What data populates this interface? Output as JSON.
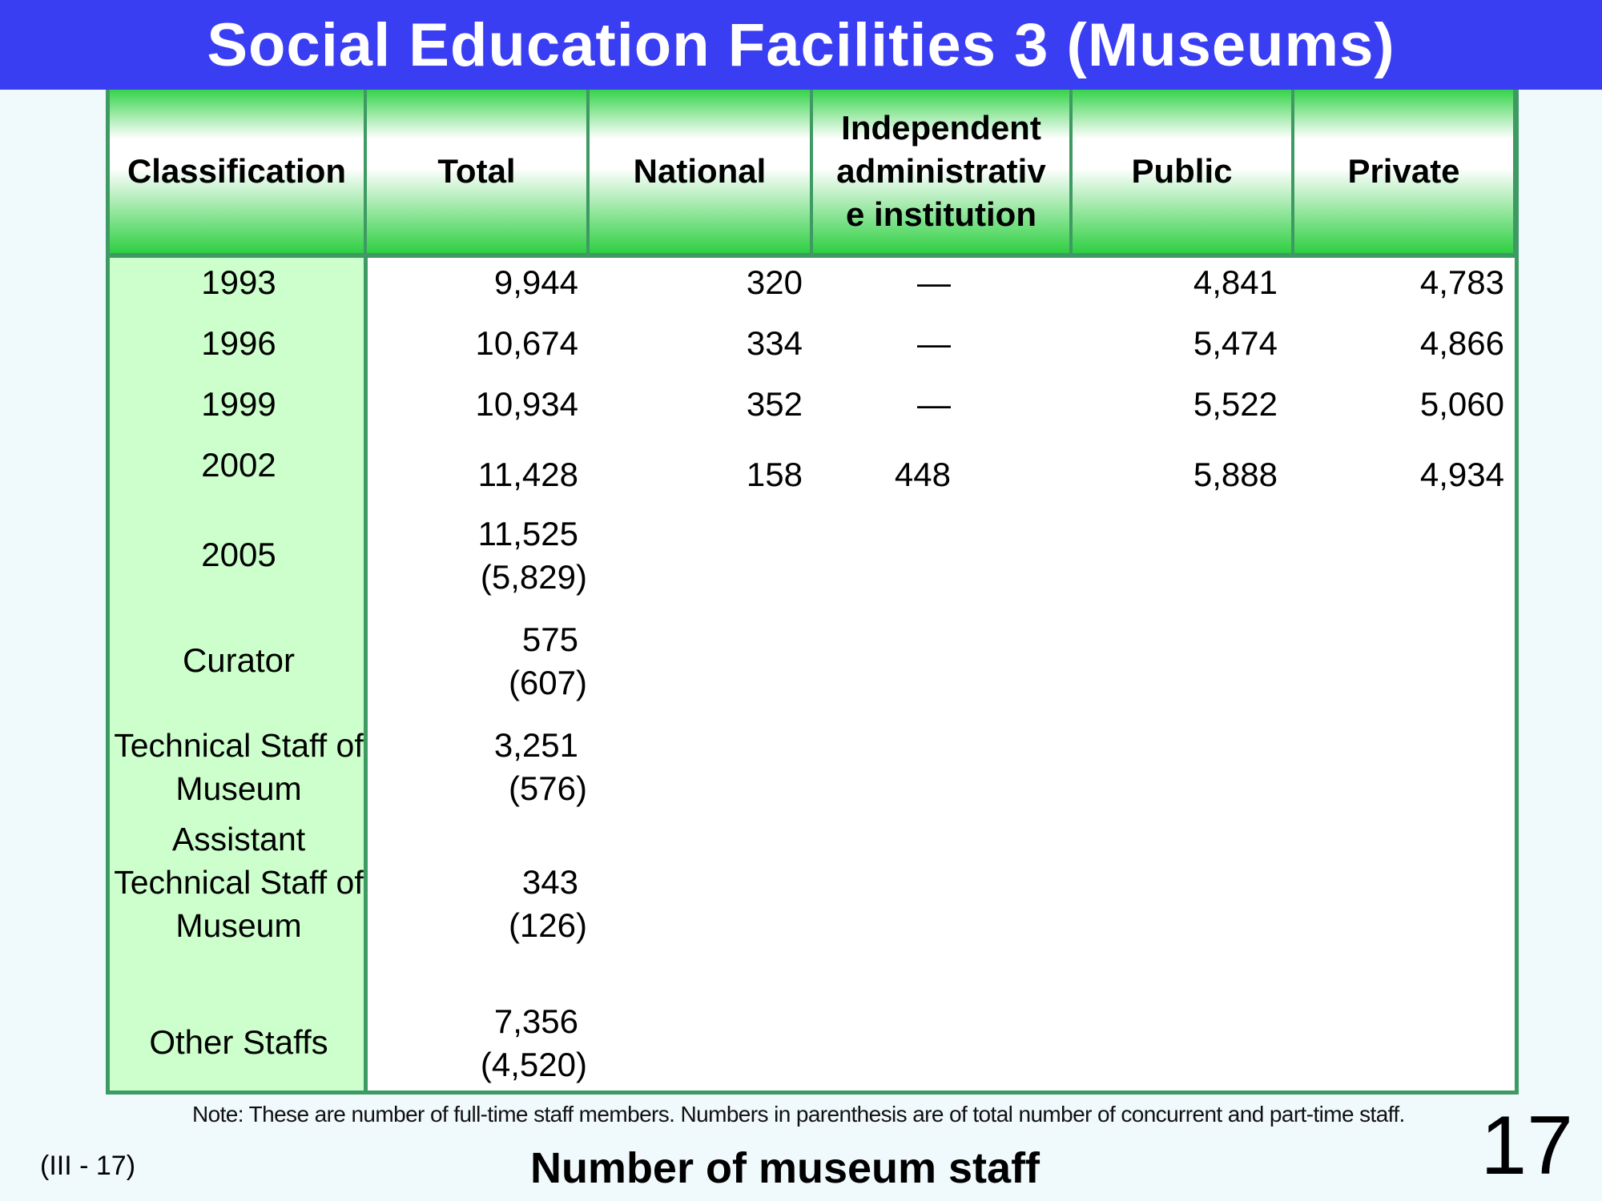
{
  "title": "Social Education Facilities 3 (Museums)",
  "table": {
    "headers": [
      "Classification",
      "Total",
      "National",
      "Independent\nadministrativ\ne  institution",
      "Public",
      "Private"
    ],
    "year_rows": [
      {
        "label": "1993",
        "values": [
          "9,944",
          "320",
          "—",
          "4,841",
          "4,783"
        ]
      },
      {
        "label": "1996",
        "values": [
          "10,674",
          "334",
          "—",
          "5,474",
          "4,866"
        ]
      },
      {
        "label": "1999",
        "values": [
          "10,934",
          "352",
          "—",
          "5,522",
          "5,060"
        ]
      },
      {
        "label": "2002",
        "values": [
          "11,428",
          "158",
          "448",
          "5,888",
          "4,934"
        ]
      }
    ],
    "detail_rows": [
      {
        "label": "2005",
        "value": "11,525",
        "paren": "(5,829)"
      },
      {
        "label": "Curator",
        "value": "575",
        "paren": "(607)"
      },
      {
        "label": "Technical Staff of\nMuseum",
        "value": "3,251",
        "paren": "(576)"
      },
      {
        "label": "Assistant\nTechnical Staff of\nMuseum",
        "value": "343",
        "paren": "(126)"
      },
      {
        "label": "Other Staffs",
        "value": "7,356",
        "paren": "(4,520)"
      }
    ]
  },
  "note": "Note: These are number of full-time staff members. Numbers in parenthesis are of total number of concurrent and part-time staff.",
  "slide_code": "(III - 17)",
  "caption": "Number of museum staff",
  "page_number": "17",
  "colors": {
    "title_bar": "#3a3ef2",
    "border_green": "#3d9a63",
    "label_column": "#ccffcc"
  }
}
